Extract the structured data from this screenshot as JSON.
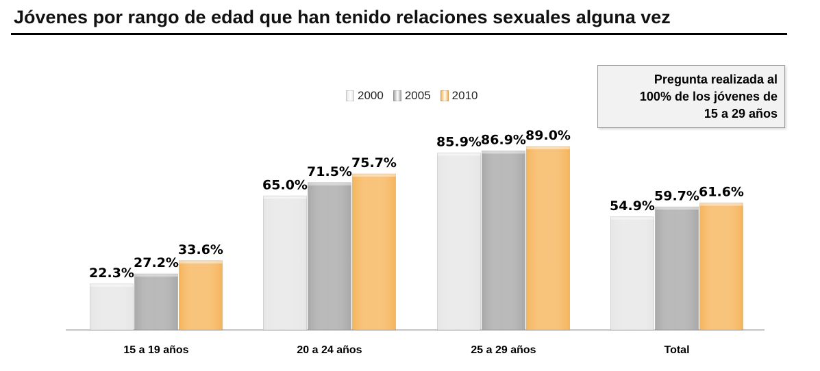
{
  "title": "Jóvenes por rango de edad que han tenido relaciones sexuales alguna vez",
  "note": "Pregunta realizada al\n100% de los jóvenes de\n15 a 29 años",
  "chart_data": {
    "type": "bar",
    "categories": [
      "15 a 19 años",
      "20 a 24 años",
      "25 a 29 años",
      "Total"
    ],
    "series": [
      {
        "name": "2000",
        "values": [
          22.3,
          65.0,
          85.9,
          54.9
        ],
        "labels": [
          "22.3%",
          "65.0%",
          "85.9%",
          "54.9%"
        ],
        "color": "#e6e6e6"
      },
      {
        "name": "2005",
        "values": [
          27.2,
          71.5,
          86.9,
          59.7
        ],
        "labels": [
          "27.2%",
          "71.5%",
          "86.9%",
          "59.7%"
        ],
        "color": "#a8a8a8"
      },
      {
        "name": "2010",
        "values": [
          33.6,
          75.7,
          89.0,
          61.6
        ],
        "labels": [
          "33.6%",
          "75.7%",
          "89.0%",
          "61.6%"
        ],
        "color": "#f6b45a"
      }
    ],
    "ylim": [
      0,
      100
    ],
    "grid": false,
    "legend_position": "top-center"
  }
}
